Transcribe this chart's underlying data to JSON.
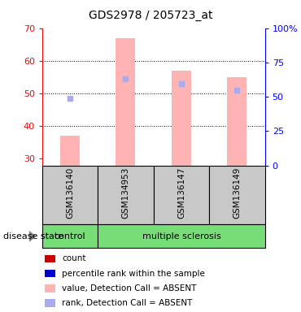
{
  "title": "GDS2978 / 205723_at",
  "samples": [
    "GSM136140",
    "GSM134953",
    "GSM136147",
    "GSM136149"
  ],
  "ylim_left": [
    28,
    70
  ],
  "ylim_right": [
    0,
    100
  ],
  "yticks_left": [
    30,
    40,
    50,
    60,
    70
  ],
  "yticks_right": [
    0,
    25,
    50,
    75,
    100
  ],
  "ytick_labels_right": [
    "0",
    "25",
    "50",
    "75",
    "100%"
  ],
  "bar_values": [
    37.0,
    67.0,
    57.0,
    55.0
  ],
  "rank_markers": [
    48.5,
    54.5,
    53.0,
    51.0
  ],
  "bar_color_absent": "#FFB3B3",
  "rank_color_absent": "#AAAAEE",
  "green_color": "#77DD77",
  "gray_color": "#C8C8C8",
  "legend_items": [
    {
      "color": "#CC0000",
      "label": "count"
    },
    {
      "color": "#0000CC",
      "label": "percentile rank within the sample"
    },
    {
      "color": "#FFB3B3",
      "label": "value, Detection Call = ABSENT"
    },
    {
      "color": "#AAAAEE",
      "label": "rank, Detection Call = ABSENT"
    }
  ]
}
